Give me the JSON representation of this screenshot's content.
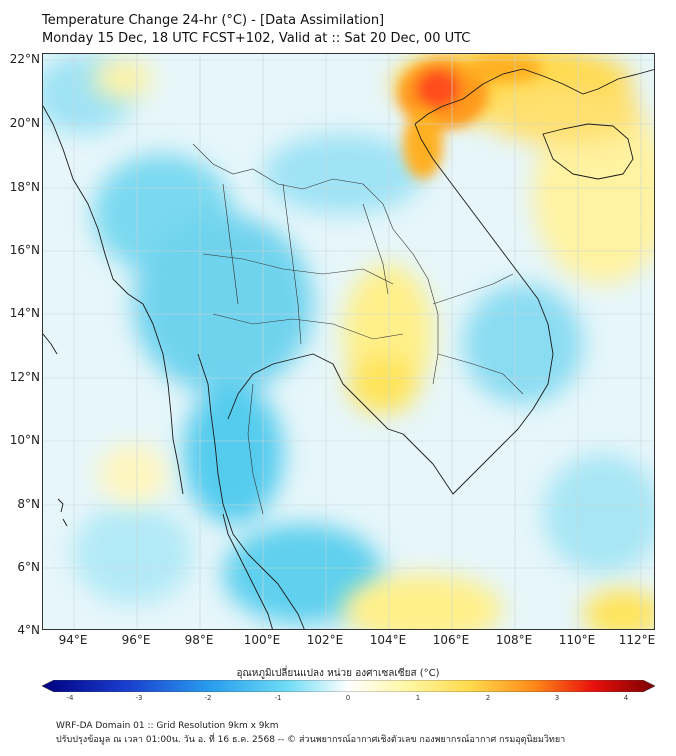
{
  "header": {
    "title_line1": "Temperature Change 24-hr (°C) - [Data Assimilation]",
    "title_line2": "Monday 15 Dec, 18 UTC FCST+102, Valid at :: Sat 20 Dec, 00 UTC"
  },
  "map": {
    "lat_labels": [
      "22°N",
      "20°N",
      "18°N",
      "16°N",
      "14°N",
      "12°N",
      "10°N",
      "8°N",
      "6°N",
      "4°N"
    ],
    "lon_labels": [
      "94°E",
      "96°E",
      "98°E",
      "100°E",
      "102°E",
      "104°E",
      "106°E",
      "108°E",
      "110°E",
      "112°E"
    ],
    "lat_range": [
      4,
      22
    ],
    "lon_range": [
      93,
      112.5
    ],
    "colors": {
      "ocean_base": "#e6f6fa",
      "cold": "#38c8ec",
      "cool": "#9fe3f5",
      "warm": "#fff08a",
      "hot": "#ffc21a",
      "very_hot": "#ff4d1a"
    }
  },
  "colorbar": {
    "title": "อุณหภูมิเปลี่ยนแปลง หน่วย องศาเซลเซียส (°C)",
    "ticks": [
      "-4",
      "-3",
      "-2",
      "-1",
      "0",
      "1",
      "2",
      "3",
      "4"
    ],
    "min_color": "#000080",
    "max_color": "#7a0000"
  },
  "footer": {
    "line1": "WRF-DA Domain 01 :: Grid Resolution 9km x 9km",
    "line2": "ปรับปรุงข้อมูล ณ เวลา 01:00น. วัน อ. ที่ 16 ธ.ค. 2568 -- © ส่วนพยากรณ์อากาศเชิงตัวเลข กองพยากรณ์อากาศ กรมอุตุนิยมวิทยา"
  }
}
